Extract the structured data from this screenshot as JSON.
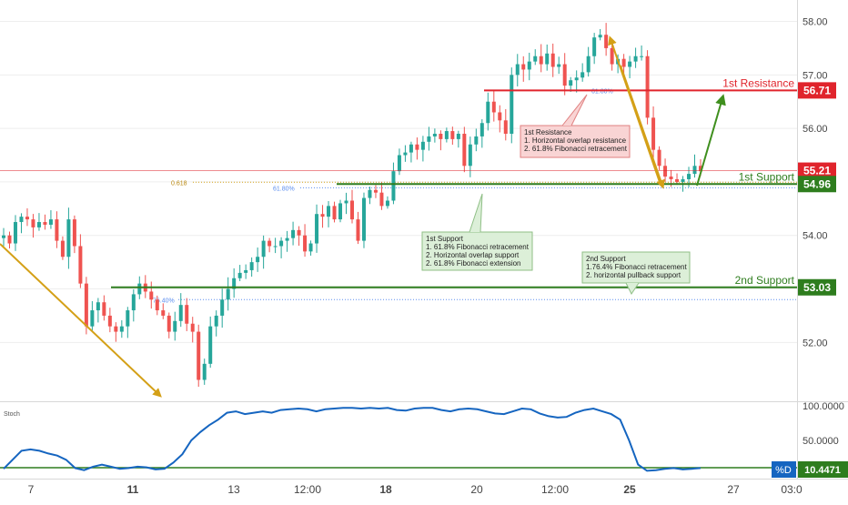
{
  "colors": {
    "up": "#26a69a",
    "down": "#ef5350",
    "wick": "#555555",
    "resistance": "#e0242c",
    "support": "#2e7d1e",
    "stoch": "#1565c0",
    "arrow_down": "#d4a017",
    "arrow_up": "#3f8f1e",
    "fib": "#5b8def",
    "price_axis_text": "#444444",
    "grid": "#eeeeee"
  },
  "chart_data": [
    {
      "type": "candlestick",
      "y_axis": {
        "min": 50.9,
        "max": 58.4,
        "ticks": [
          "52.00",
          "53.00",
          "54.00",
          "55.00",
          "56.00",
          "57.00",
          "58.00"
        ],
        "side": "right"
      },
      "x_axis": {
        "ticks": [
          "7",
          "11",
          "13",
          "12:00",
          "18",
          "20",
          "12:00",
          "25",
          "27",
          "03:0"
        ]
      },
      "price_path": [
        54.0,
        53.85,
        54.25,
        54.35,
        54.3,
        54.15,
        54.25,
        54.2,
        54.3,
        53.9,
        53.6,
        54.3,
        53.8,
        53.1,
        52.3,
        52.6,
        52.75,
        52.5,
        52.3,
        52.2,
        52.3,
        52.6,
        52.9,
        53.1,
        52.95,
        52.8,
        52.6,
        52.5,
        52.2,
        52.4,
        52.7,
        52.35,
        52.2,
        51.3,
        51.6,
        52.3,
        52.5,
        52.8,
        53.0,
        53.2,
        53.3,
        53.35,
        53.5,
        53.6,
        53.9,
        53.8,
        53.8,
        53.9,
        53.95,
        54.1,
        54.0,
        53.7,
        53.85,
        54.4,
        54.35,
        54.55,
        54.3,
        54.6,
        54.65,
        54.3,
        53.9,
        54.7,
        54.85,
        54.8,
        54.55,
        54.65,
        55.2,
        55.5,
        55.55,
        55.7,
        55.6,
        55.75,
        55.85,
        55.9,
        55.8,
        55.95,
        55.8,
        55.9,
        55.3,
        55.7,
        55.85,
        56.1,
        56.5,
        56.3,
        56.15,
        55.9,
        57.0,
        57.2,
        57.1,
        57.25,
        57.35,
        57.2,
        57.4,
        57.15,
        57.2,
        56.8,
        56.9,
        56.95,
        57.05,
        57.35,
        57.7,
        57.75,
        57.5,
        57.2,
        57.3,
        57.15,
        57.25,
        57.35,
        57.35,
        56.2,
        55.6,
        55.3,
        55.1,
        55.05,
        55.0,
        55.05,
        55.15,
        55.3,
        55.2
      ],
      "levels": [
        {
          "label": "1st Resistance",
          "value": "56.71",
          "color": "#e0242c"
        },
        {
          "label": "",
          "value": "55.21",
          "color": "#e0242c"
        },
        {
          "label": "1st Support",
          "value": "54.96",
          "color": "#2e7d1e"
        },
        {
          "label": "2nd Support",
          "value": "53.03",
          "color": "#2e7d1e"
        }
      ],
      "fib_labels": {
        "fib_618": "0.618",
        "fib_6180_top": "61.80%",
        "fib_6180_mid": "61.80%",
        "fib_7640": "76.40%"
      },
      "annotations": [
        {
          "id": "res",
          "lines": [
            "1st Resistance",
            "1. Horizontal overlap resistance",
            "2. 61.8% Fibonacci retracement"
          ]
        },
        {
          "id": "sup1",
          "lines": [
            "1st Support",
            "1. 61.8% Fibonacci retracement",
            "2. Horizontal overlap support",
            "2. 61.8% Fibonacci extension"
          ]
        },
        {
          "id": "sup2",
          "lines": [
            "2nd Support",
            "1.76.4% Fibonacci retracement",
            "2. horizontal pullback support"
          ]
        }
      ]
    },
    {
      "type": "line",
      "title": "Stoch",
      "y_axis": {
        "min": 0,
        "max": 100,
        "ticks": [
          "100.0000",
          "50.0000"
        ]
      },
      "series": [
        {
          "name": "%D",
          "last_value": "10.4471"
        }
      ],
      "values": [
        9,
        22,
        35,
        37,
        35,
        31,
        28,
        22,
        10,
        7,
        12,
        15,
        12,
        9,
        10,
        12,
        11,
        8,
        9,
        18,
        30,
        50,
        62,
        72,
        80,
        90,
        92,
        88,
        90,
        92,
        90,
        94,
        95,
        96,
        95,
        92,
        95,
        96,
        97,
        97,
        96,
        97,
        96,
        97,
        94,
        93,
        96,
        97,
        97,
        94,
        92,
        95,
        96,
        95,
        92,
        89,
        88,
        92,
        96,
        95,
        89,
        85,
        83,
        84,
        90,
        94,
        96,
        92,
        88,
        80,
        50,
        15,
        6,
        7,
        9,
        10,
        8,
        9,
        10
      ]
    }
  ]
}
